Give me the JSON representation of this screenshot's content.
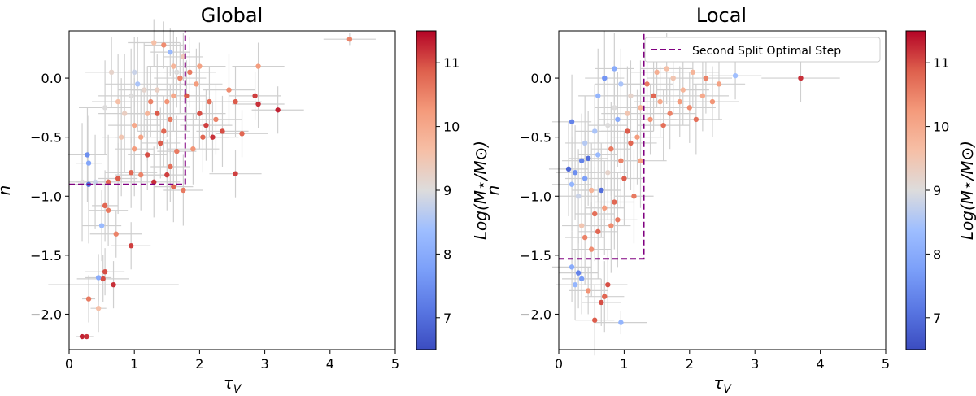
{
  "chart_data": [
    {
      "type": "scatter",
      "title": "Global",
      "xlabel": "τ_V",
      "ylabel": "n",
      "xlim": [
        0,
        5
      ],
      "ylim": [
        -2.3,
        0.4
      ],
      "xticks": [
        "0",
        "1",
        "2",
        "3",
        "4",
        "5"
      ],
      "yticks": [
        "0.0",
        "−0.5",
        "−1.0",
        "−1.5",
        "−2.0"
      ],
      "colorbar": {
        "label": "Log(M⋆/M⊙)",
        "range": [
          6.5,
          11.5
        ],
        "ticks": [
          "7",
          "8",
          "9",
          "10",
          "11"
        ],
        "colormap": "coolwarm"
      },
      "step": {
        "x": 1.78,
        "y": -0.9,
        "color": "#800080"
      },
      "points": [
        [
          0.2,
          -2.19,
          11.3,
          0.1,
          0.02
        ],
        [
          0.27,
          -2.19,
          11.2,
          0.1,
          0.02
        ],
        [
          0.3,
          -1.87,
          10.6,
          0.1,
          0.2
        ],
        [
          0.45,
          -1.95,
          9.6,
          0.12,
          0.2
        ],
        [
          0.55,
          -1.64,
          11.0,
          0.3,
          0.2
        ],
        [
          0.52,
          -1.7,
          11.0,
          0.4,
          0.2
        ],
        [
          0.45,
          -1.69,
          8.0,
          0.2,
          0.2
        ],
        [
          0.68,
          -1.75,
          11.2,
          1.0,
          0.2
        ],
        [
          0.72,
          -1.32,
          10.5,
          0.4,
          0.2
        ],
        [
          0.5,
          -1.25,
          8.3,
          0.3,
          0.3
        ],
        [
          0.6,
          -1.12,
          10.6,
          0.3,
          0.3
        ],
        [
          0.55,
          -1.08,
          10.8,
          0.2,
          0.3
        ],
        [
          0.95,
          -1.42,
          11.1,
          0.3,
          0.2
        ],
        [
          0.3,
          -0.9,
          7.0,
          0.25,
          0.5
        ],
        [
          0.2,
          -0.88,
          9.0,
          0.2,
          0.5
        ],
        [
          0.28,
          -0.65,
          7.5,
          0.3,
          0.4
        ],
        [
          0.3,
          -0.72,
          7.9,
          0.2,
          0.4
        ],
        [
          0.4,
          -0.88,
          8.8,
          0.3,
          0.4
        ],
        [
          0.6,
          -0.88,
          10.8,
          0.3,
          0.4
        ],
        [
          0.75,
          -0.85,
          10.9,
          0.3,
          0.3
        ],
        [
          0.95,
          -0.8,
          10.8,
          0.4,
          0.3
        ],
        [
          1.1,
          -0.82,
          10.5,
          0.4,
          0.3
        ],
        [
          1.3,
          -0.88,
          11.2,
          0.4,
          0.3
        ],
        [
          1.5,
          -0.82,
          11.1,
          0.3,
          0.3
        ],
        [
          1.6,
          -0.92,
          10.8,
          0.3,
          0.3
        ],
        [
          1.75,
          -0.95,
          10.6,
          0.3,
          0.3
        ],
        [
          2.55,
          -0.81,
          11.1,
          0.4,
          0.2
        ],
        [
          1.0,
          -0.6,
          10.2,
          0.3,
          0.4
        ],
        [
          1.2,
          -0.65,
          11.0,
          0.3,
          0.3
        ],
        [
          1.4,
          -0.55,
          10.9,
          0.3,
          0.3
        ],
        [
          1.55,
          -0.75,
          10.7,
          0.3,
          0.3
        ],
        [
          1.65,
          -0.62,
          10.6,
          0.3,
          0.3
        ],
        [
          0.8,
          -0.5,
          9.5,
          0.3,
          0.5
        ],
        [
          0.85,
          -0.3,
          9.3,
          0.4,
          0.5
        ],
        [
          0.95,
          -0.15,
          9.0,
          0.5,
          0.4
        ],
        [
          1.0,
          -0.4,
          10.0,
          0.4,
          0.4
        ],
        [
          1.05,
          -0.05,
          8.5,
          0.5,
          0.4
        ],
        [
          1.15,
          -0.1,
          9.2,
          0.4,
          0.4
        ],
        [
          1.25,
          -0.2,
          10.5,
          0.4,
          0.3
        ],
        [
          1.35,
          -0.3,
          10.9,
          0.4,
          0.3
        ],
        [
          1.45,
          -0.45,
          10.8,
          0.4,
          0.3
        ],
        [
          1.5,
          -0.2,
          10.3,
          0.4,
          0.3
        ],
        [
          1.55,
          -0.35,
          10.6,
          0.4,
          0.3
        ],
        [
          1.6,
          -0.15,
          10.0,
          0.4,
          0.3
        ],
        [
          1.65,
          0.05,
          9.0,
          0.5,
          0.3
        ],
        [
          1.3,
          0.3,
          9.6,
          0.4,
          0.2
        ],
        [
          1.45,
          0.28,
          10.4,
          0.3,
          0.2
        ],
        [
          1.55,
          0.22,
          8.3,
          0.3,
          0.2
        ],
        [
          1.6,
          0.1,
          9.8,
          0.4,
          0.3
        ],
        [
          1.7,
          0.0,
          10.5,
          0.4,
          0.3
        ],
        [
          1.8,
          -0.15,
          10.9,
          0.3,
          0.3
        ],
        [
          1.85,
          0.05,
          10.6,
          0.4,
          0.3
        ],
        [
          1.95,
          -0.05,
          10.2,
          0.4,
          0.3
        ],
        [
          2.0,
          -0.3,
          11.0,
          0.4,
          0.3
        ],
        [
          2.05,
          -0.5,
          10.8,
          0.4,
          0.3
        ],
        [
          2.1,
          -0.4,
          11.1,
          0.4,
          0.3
        ],
        [
          2.15,
          -0.2,
          10.7,
          0.4,
          0.3
        ],
        [
          2.2,
          -0.5,
          11.2,
          0.4,
          0.3
        ],
        [
          2.25,
          -0.35,
          10.5,
          0.4,
          0.3
        ],
        [
          2.35,
          -0.45,
          11.0,
          0.4,
          0.3
        ],
        [
          2.45,
          -0.1,
          10.4,
          0.4,
          0.3
        ],
        [
          2.55,
          -0.2,
          10.9,
          0.4,
          0.3
        ],
        [
          2.65,
          -0.47,
          10.8,
          0.4,
          0.2
        ],
        [
          2.85,
          -0.15,
          11.1,
          0.4,
          0.2
        ],
        [
          2.9,
          -0.22,
          11.2,
          0.4,
          0.2
        ],
        [
          3.2,
          -0.27,
          11.3,
          0.4,
          0.2
        ],
        [
          2.9,
          0.1,
          10.2,
          0.4,
          0.2
        ],
        [
          2.0,
          0.1,
          10.1,
          0.4,
          0.2
        ],
        [
          4.3,
          0.33,
          10.5,
          0.4,
          0.05
        ],
        [
          0.65,
          0.05,
          9.2,
          0.4,
          0.3
        ],
        [
          0.75,
          -0.2,
          9.6,
          0.4,
          0.4
        ],
        [
          0.55,
          -0.25,
          9.0,
          0.4,
          0.4
        ],
        [
          1.1,
          -0.5,
          10.1,
          0.4,
          0.4
        ],
        [
          1.2,
          -0.3,
          9.8,
          0.4,
          0.4
        ],
        [
          1.35,
          -0.1,
          9.3,
          0.4,
          0.3
        ],
        [
          1.9,
          -0.6,
          10.3,
          0.4,
          0.3
        ],
        [
          1.75,
          0.18,
          9.4,
          0.3,
          0.2
        ],
        [
          1.0,
          0.05,
          8.8,
          0.4,
          0.3
        ]
      ]
    },
    {
      "type": "scatter",
      "title": "Local",
      "xlabel": "τ_V",
      "ylabel": "n",
      "xlim": [
        0,
        5
      ],
      "ylim": [
        -2.3,
        0.4
      ],
      "xticks": [
        "0",
        "1",
        "2",
        "3",
        "4",
        "5"
      ],
      "yticks": [
        "0.0",
        "−0.5",
        "−1.0",
        "−1.5",
        "−2.0"
      ],
      "colorbar": {
        "label": "Log(M⋆/M⊙)",
        "range": [
          6.5,
          11.5
        ],
        "ticks": [
          "7",
          "8",
          "9",
          "10",
          "11"
        ],
        "colormap": "coolwarm"
      },
      "legend": {
        "label": "Second Split Optimal Step",
        "position": "top-right"
      },
      "step": {
        "x": 1.3,
        "y": -1.53,
        "color": "#800080"
      },
      "points": [
        [
          0.95,
          -2.07,
          8.2,
          0.4,
          0.1
        ],
        [
          0.55,
          -2.05,
          10.9,
          0.3,
          0.3
        ],
        [
          0.65,
          -1.9,
          11.0,
          0.3,
          0.2
        ],
        [
          0.7,
          -1.85,
          10.8,
          0.3,
          0.3
        ],
        [
          0.25,
          -1.75,
          8.2,
          0.3,
          0.3
        ],
        [
          0.35,
          -1.7,
          7.7,
          0.3,
          0.3
        ],
        [
          0.45,
          -1.8,
          10.3,
          0.3,
          0.2
        ],
        [
          0.75,
          -1.75,
          11.0,
          0.3,
          0.3
        ],
        [
          0.3,
          -1.65,
          7.3,
          0.3,
          0.3
        ],
        [
          0.2,
          -1.6,
          8.0,
          0.3,
          0.3
        ],
        [
          0.4,
          -1.35,
          10.5,
          0.3,
          0.4
        ],
        [
          0.6,
          -1.3,
          10.8,
          0.3,
          0.4
        ],
        [
          0.8,
          -1.25,
          10.4,
          0.3,
          0.4
        ],
        [
          0.9,
          -1.2,
          10.6,
          0.3,
          0.4
        ],
        [
          0.55,
          -1.15,
          10.7,
          0.3,
          0.4
        ],
        [
          0.7,
          -1.1,
          10.2,
          0.3,
          0.4
        ],
        [
          0.85,
          -1.05,
          10.8,
          0.3,
          0.4
        ],
        [
          0.3,
          -1.0,
          8.8,
          0.3,
          0.4
        ],
        [
          0.65,
          -0.95,
          7.0,
          0.3,
          0.4
        ],
        [
          0.2,
          -0.9,
          8.2,
          0.3,
          0.4
        ],
        [
          0.4,
          -0.85,
          7.8,
          0.3,
          0.4
        ],
        [
          0.25,
          -0.8,
          7.5,
          0.3,
          0.4
        ],
        [
          0.15,
          -0.77,
          6.9,
          0.3,
          0.4
        ],
        [
          0.35,
          -0.7,
          7.3,
          0.3,
          0.4
        ],
        [
          0.45,
          -0.68,
          7.0,
          0.3,
          0.4
        ],
        [
          0.6,
          -0.65,
          8.3,
          0.3,
          0.4
        ],
        [
          0.8,
          -0.6,
          10.6,
          0.3,
          0.4
        ],
        [
          0.95,
          -0.7,
          10.5,
          0.3,
          0.4
        ],
        [
          1.1,
          -0.55,
          10.8,
          0.4,
          0.4
        ],
        [
          1.2,
          -0.5,
          10.2,
          0.4,
          0.4
        ],
        [
          0.2,
          -0.37,
          7.3,
          0.3,
          0.4
        ],
        [
          0.55,
          -0.45,
          8.5,
          0.3,
          0.4
        ],
        [
          0.75,
          -0.4,
          9.0,
          0.3,
          0.4
        ],
        [
          0.9,
          -0.35,
          8.0,
          0.3,
          0.4
        ],
        [
          1.05,
          -0.3,
          9.5,
          0.4,
          0.4
        ],
        [
          1.25,
          -0.25,
          9.8,
          0.4,
          0.4
        ],
        [
          1.4,
          -0.35,
          10.3,
          0.4,
          0.3
        ],
        [
          1.55,
          -0.2,
          10.0,
          0.4,
          0.3
        ],
        [
          1.6,
          -0.4,
          10.7,
          0.4,
          0.3
        ],
        [
          1.7,
          -0.3,
          10.5,
          0.4,
          0.3
        ],
        [
          1.85,
          -0.2,
          10.2,
          0.4,
          0.3
        ],
        [
          1.9,
          -0.1,
          9.8,
          0.4,
          0.3
        ],
        [
          2.0,
          -0.25,
          10.4,
          0.4,
          0.3
        ],
        [
          2.1,
          -0.35,
          10.7,
          0.4,
          0.3
        ],
        [
          2.2,
          -0.15,
          10.0,
          0.4,
          0.3
        ],
        [
          2.35,
          -0.2,
          10.3,
          0.4,
          0.3
        ],
        [
          2.45,
          -0.05,
          10.1,
          0.4,
          0.3
        ],
        [
          2.25,
          0.0,
          10.5,
          0.4,
          0.3
        ],
        [
          2.05,
          0.05,
          9.8,
          0.4,
          0.3
        ],
        [
          1.75,
          0.0,
          9.5,
          0.4,
          0.3
        ],
        [
          1.5,
          0.05,
          9.9,
          0.4,
          0.3
        ],
        [
          1.35,
          -0.05,
          10.6,
          0.4,
          0.3
        ],
        [
          1.1,
          -0.15,
          9.2,
          0.4,
          0.3
        ],
        [
          0.95,
          -0.05,
          8.5,
          0.4,
          0.3
        ],
        [
          0.6,
          -0.15,
          8.2,
          0.3,
          0.4
        ],
        [
          0.7,
          0.0,
          7.6,
          0.3,
          0.4
        ],
        [
          0.85,
          0.08,
          8.0,
          0.3,
          0.3
        ],
        [
          1.65,
          0.08,
          9.6,
          0.4,
          0.3
        ],
        [
          2.7,
          0.02,
          8.4,
          0.4,
          0.2
        ],
        [
          3.7,
          0.0,
          11.2,
          0.6,
          0.2
        ],
        [
          1.0,
          -0.85,
          10.9,
          0.3,
          0.4
        ],
        [
          1.15,
          -1.0,
          10.6,
          0.3,
          0.4
        ],
        [
          0.5,
          -1.45,
          10.4,
          0.3,
          0.4
        ],
        [
          0.35,
          -1.25,
          9.5,
          0.3,
          0.4
        ],
        [
          0.5,
          -0.95,
          9.8,
          0.3,
          0.4
        ],
        [
          0.75,
          -0.8,
          9.2,
          0.3,
          0.4
        ],
        [
          1.25,
          -0.7,
          10.1,
          0.4,
          0.4
        ],
        [
          0.4,
          -0.55,
          8.6,
          0.3,
          0.4
        ],
        [
          1.05,
          -0.45,
          10.9,
          0.4,
          0.4
        ],
        [
          1.45,
          -0.15,
          10.8,
          0.4,
          0.3
        ],
        [
          0.85,
          -0.25,
          9.0,
          0.3,
          0.4
        ]
      ]
    }
  ]
}
